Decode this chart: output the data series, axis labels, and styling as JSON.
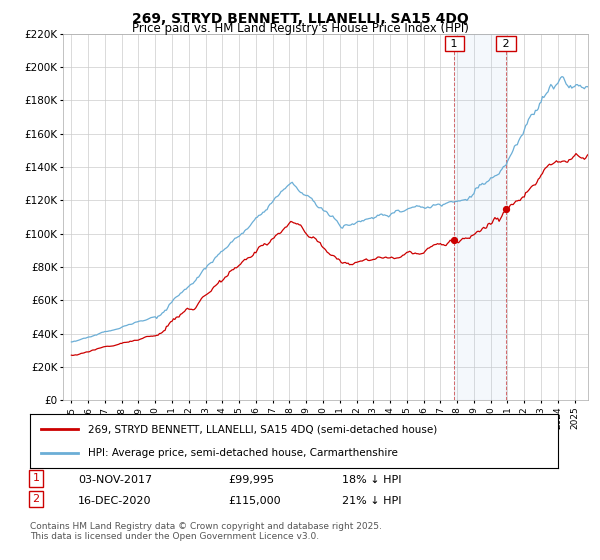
{
  "title": "269, STRYD BENNETT, LLANELLI, SA15 4DQ",
  "subtitle": "Price paid vs. HM Land Registry's House Price Index (HPI)",
  "legend_entry1": "269, STRYD BENNETT, LLANELLI, SA15 4DQ (semi-detached house)",
  "legend_entry2": "HPI: Average price, semi-detached house, Carmarthenshire",
  "annotation1_label": "1",
  "annotation1_date": "03-NOV-2017",
  "annotation1_price": "£99,995",
  "annotation1_hpi": "18% ↓ HPI",
  "annotation2_label": "2",
  "annotation2_date": "16-DEC-2020",
  "annotation2_price": "£115,000",
  "annotation2_hpi": "21% ↓ HPI",
  "footnote": "Contains HM Land Registry data © Crown copyright and database right 2025.\nThis data is licensed under the Open Government Licence v3.0.",
  "hpi_color": "#6baed6",
  "price_color": "#cc0000",
  "annotation_vline_color": "#cc0000",
  "annotation_box_color": "#cc0000",
  "annotation_fill_color": "#ddeeff",
  "ylim": [
    0,
    220000
  ],
  "yticks": [
    0,
    20000,
    40000,
    60000,
    80000,
    100000,
    120000,
    140000,
    160000,
    180000,
    200000,
    220000
  ],
  "background_color": "#ffffff",
  "grid_color": "#cccccc"
}
